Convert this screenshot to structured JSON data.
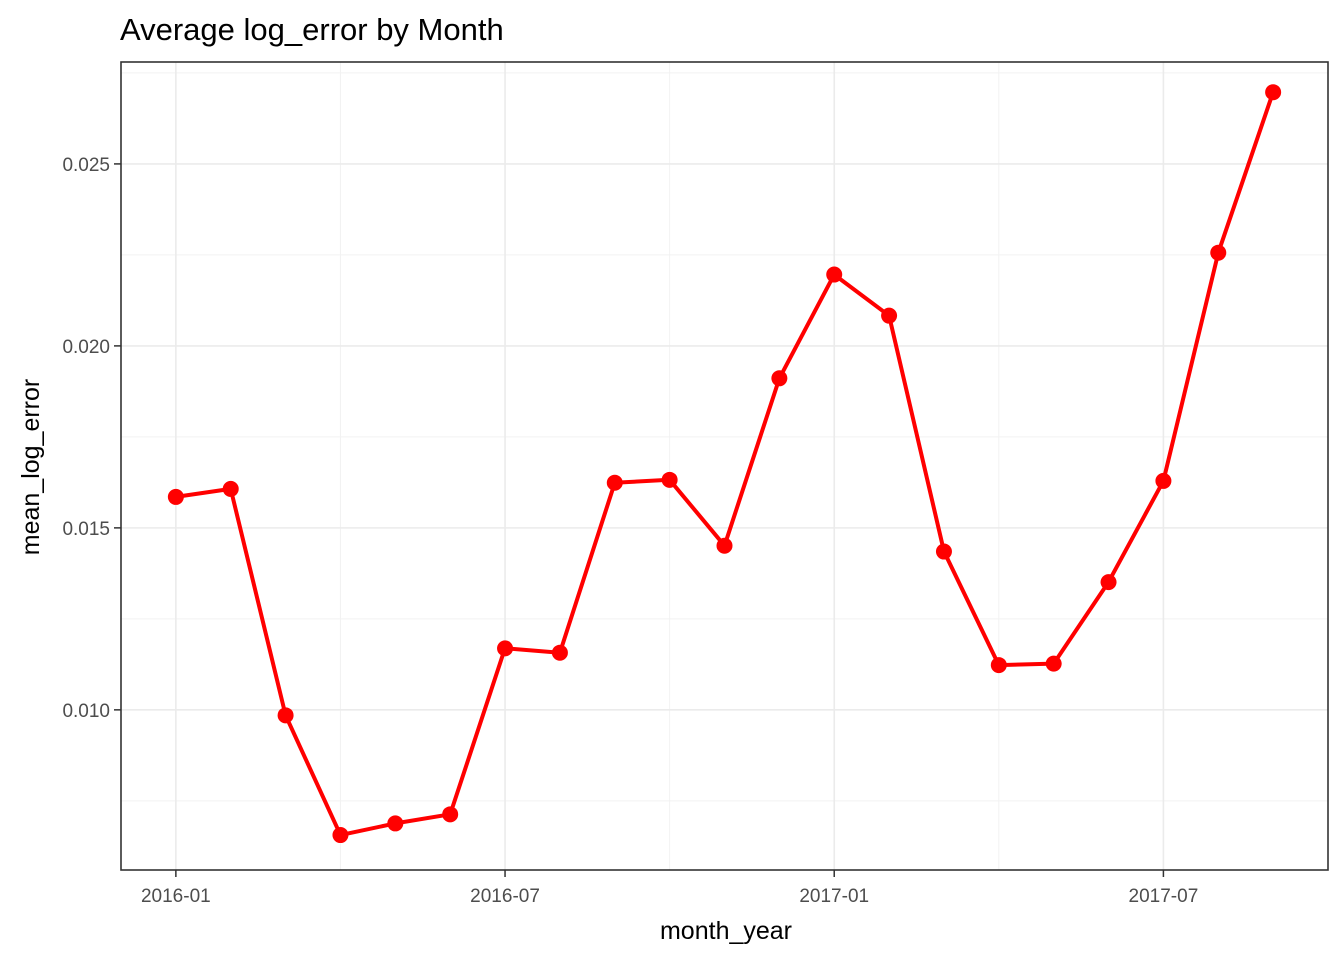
{
  "chart_data": {
    "type": "line",
    "title": "Average log_error by Month",
    "xlabel": "month_year",
    "ylabel": "mean_log_error",
    "x": [
      "2016-01",
      "2016-02",
      "2016-03",
      "2016-04",
      "2016-05",
      "2016-06",
      "2016-07",
      "2016-08",
      "2016-09",
      "2016-10",
      "2016-11",
      "2016-12",
      "2017-01",
      "2017-02",
      "2017-03",
      "2017-04",
      "2017-05",
      "2017-06",
      "2017-07",
      "2017-08",
      "2017-09"
    ],
    "series": [
      {
        "values": [
          0.01585,
          0.01607,
          0.00985,
          0.00656,
          0.00688,
          0.00713,
          0.01169,
          0.01157,
          0.01624,
          0.01632,
          0.01451,
          0.01911,
          0.02196,
          0.02083,
          0.01435,
          0.01123,
          0.01127,
          0.01351,
          0.01629,
          0.02256,
          0.02697
        ]
      }
    ],
    "x_ticks": [
      "2016-01",
      "2016-07",
      "2017-01",
      "2017-07"
    ],
    "y_ticks": [
      "0.010",
      "0.015",
      "0.020",
      "0.025"
    ],
    "ylim": [
      0.0056,
      0.0278
    ],
    "xlim": [
      "2015-12",
      "2017-10"
    ],
    "grid": true,
    "colors": {
      "line": "#ff0000",
      "point": "#ff0000"
    }
  }
}
